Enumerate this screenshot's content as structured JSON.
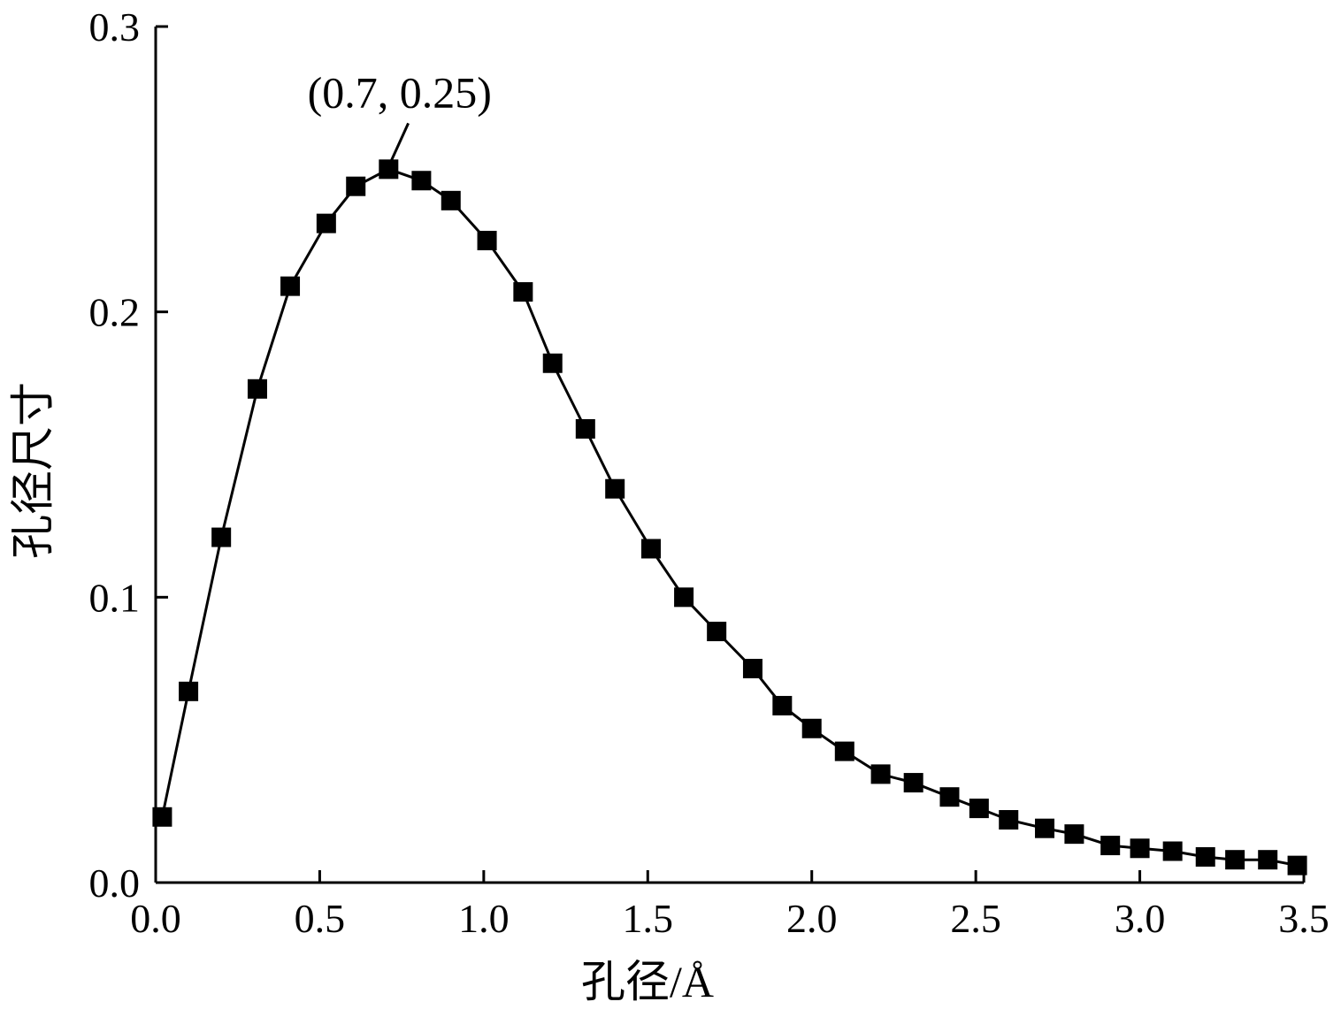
{
  "chart_data": {
    "type": "line",
    "title": "",
    "xlabel": "孔径/Å",
    "ylabel": "孔径尺寸",
    "xlim": [
      0.0,
      3.5
    ],
    "ylim": [
      0.0,
      0.3
    ],
    "x_ticks": [
      0.0,
      0.5,
      1.0,
      1.5,
      2.0,
      2.5,
      3.0,
      3.5
    ],
    "x_tick_labels": [
      "0.0",
      "0.5",
      "1.0",
      "1.5",
      "2.0",
      "2.5",
      "3.0",
      "3.5"
    ],
    "y_ticks": [
      0.0,
      0.1,
      0.2,
      0.3
    ],
    "y_tick_labels": [
      "0.0",
      "0.1",
      "0.2",
      "0.3"
    ],
    "grid": false,
    "legend": "none",
    "marker": "square",
    "color": "#000000",
    "series": [
      {
        "x": [
          0.02,
          0.1,
          0.2,
          0.31,
          0.41,
          0.52,
          0.61,
          0.71,
          0.81,
          0.9,
          1.01,
          1.12,
          1.21,
          1.31,
          1.4,
          1.51,
          1.61,
          1.71,
          1.82,
          1.91,
          2.0,
          2.1,
          2.21,
          2.31,
          2.42,
          2.51,
          2.6,
          2.71,
          2.8,
          2.91,
          3.0,
          3.1,
          3.2,
          3.29,
          3.39,
          3.48
        ],
        "y": [
          0.023,
          0.067,
          0.121,
          0.173,
          0.209,
          0.231,
          0.244,
          0.25,
          0.246,
          0.239,
          0.225,
          0.207,
          0.182,
          0.159,
          0.138,
          0.117,
          0.1,
          0.088,
          0.075,
          0.062,
          0.054,
          0.046,
          0.038,
          0.035,
          0.03,
          0.026,
          0.022,
          0.019,
          0.017,
          0.013,
          0.012,
          0.011,
          0.009,
          0.008,
          0.008,
          0.006
        ]
      }
    ],
    "annotations": [
      {
        "text": "(0.7, 0.25)",
        "x": 0.7,
        "y": 0.25
      }
    ]
  }
}
